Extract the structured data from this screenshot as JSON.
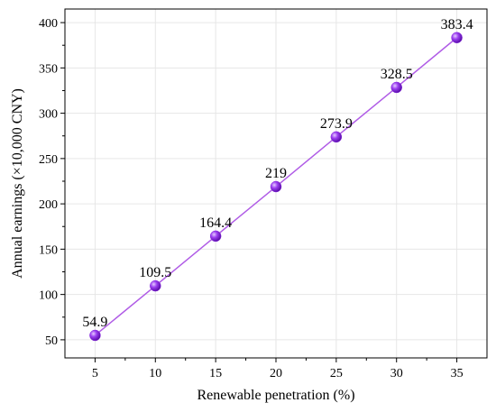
{
  "chart_data": {
    "type": "line",
    "title": "",
    "xlabel": "Renewable penetration (%)",
    "ylabel": "Annual earnings (×10,000 CNY)",
    "x": [
      5,
      10,
      15,
      20,
      25,
      30,
      35
    ],
    "series": [
      {
        "values": [
          54.9,
          109.5,
          164.4,
          219,
          273.9,
          328.5,
          383.4
        ],
        "labels": [
          "54.9",
          "109.5",
          "164.4",
          "219",
          "273.9",
          "328.5",
          "383.4"
        ],
        "color": "#b05ce6",
        "marker_color": "#8a2be2",
        "marker": "sphere"
      }
    ],
    "xlim": [
      2.5,
      37.5
    ],
    "ylim": [
      30,
      415
    ],
    "xticks": [
      5,
      10,
      15,
      20,
      25,
      30,
      35
    ],
    "yticks": [
      50,
      100,
      150,
      200,
      250,
      300,
      350,
      400
    ],
    "grid": true,
    "legend": "none"
  }
}
